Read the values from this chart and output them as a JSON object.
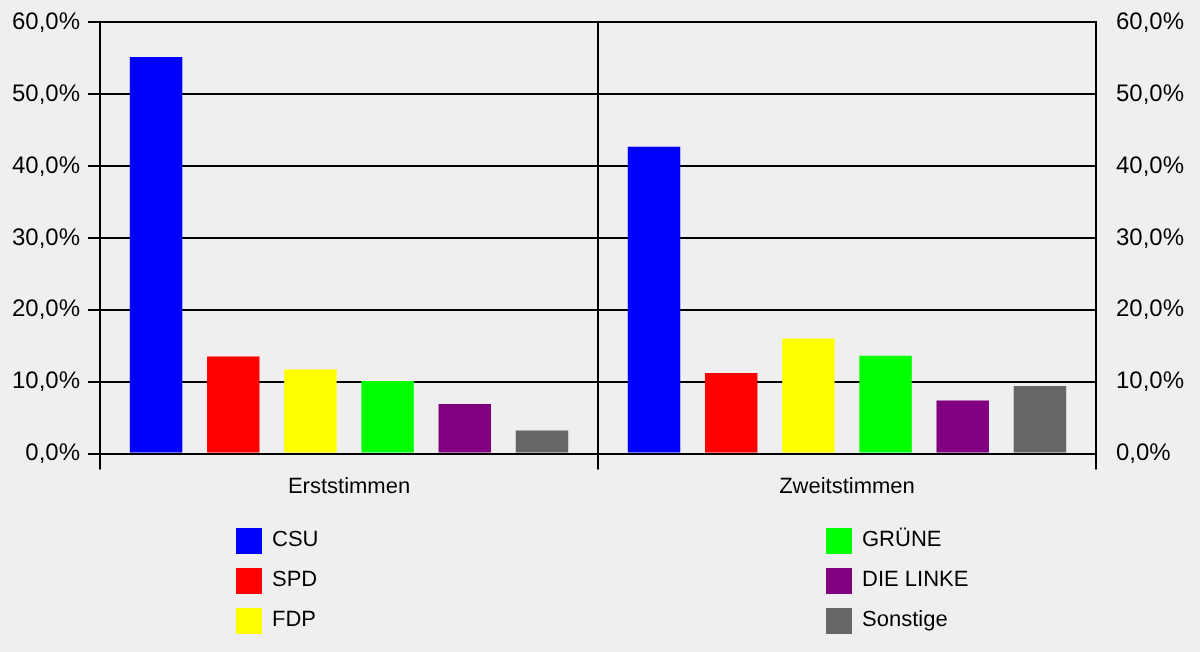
{
  "chart_data": {
    "type": "bar",
    "categories": [
      "Erststimmen",
      "Zweitstimmen"
    ],
    "series": [
      {
        "name": "CSU",
        "color": "#0000ff",
        "values": [
          55.2,
          42.7
        ]
      },
      {
        "name": "SPD",
        "color": "#ff0000",
        "values": [
          13.5,
          11.2
        ]
      },
      {
        "name": "FDP",
        "color": "#ffff00",
        "values": [
          11.7,
          16.0
        ]
      },
      {
        "name": "GRÜNE",
        "color": "#00ff00",
        "values": [
          10.1,
          13.6
        ]
      },
      {
        "name": "DIE LINKE",
        "color": "#800080",
        "values": [
          6.9,
          7.4
        ]
      },
      {
        "name": "Sonstige",
        "color": "#666666",
        "values": [
          3.2,
          9.4
        ]
      }
    ],
    "ylim": [
      0,
      60
    ],
    "yticks": [
      {
        "value": 0,
        "label": "0,0%"
      },
      {
        "value": 10,
        "label": "10,0%"
      },
      {
        "value": 20,
        "label": "20,0%"
      },
      {
        "value": 30,
        "label": "30,0%"
      },
      {
        "value": 40,
        "label": "40,0%"
      },
      {
        "value": 50,
        "label": "50,0%"
      },
      {
        "value": 60,
        "label": "60,0%"
      }
    ],
    "y2lim": [
      0,
      60
    ],
    "y2ticks": [
      {
        "value": 0,
        "label": "0,0%"
      },
      {
        "value": 10,
        "label": "10,0%"
      },
      {
        "value": 20,
        "label": "20,0%"
      },
      {
        "value": 30,
        "label": "30,0%"
      },
      {
        "value": 40,
        "label": "40,0%"
      },
      {
        "value": 50,
        "label": "50,0%"
      },
      {
        "value": 60,
        "label": "60,0%"
      }
    ],
    "grid": "y",
    "legend": "bottom"
  }
}
